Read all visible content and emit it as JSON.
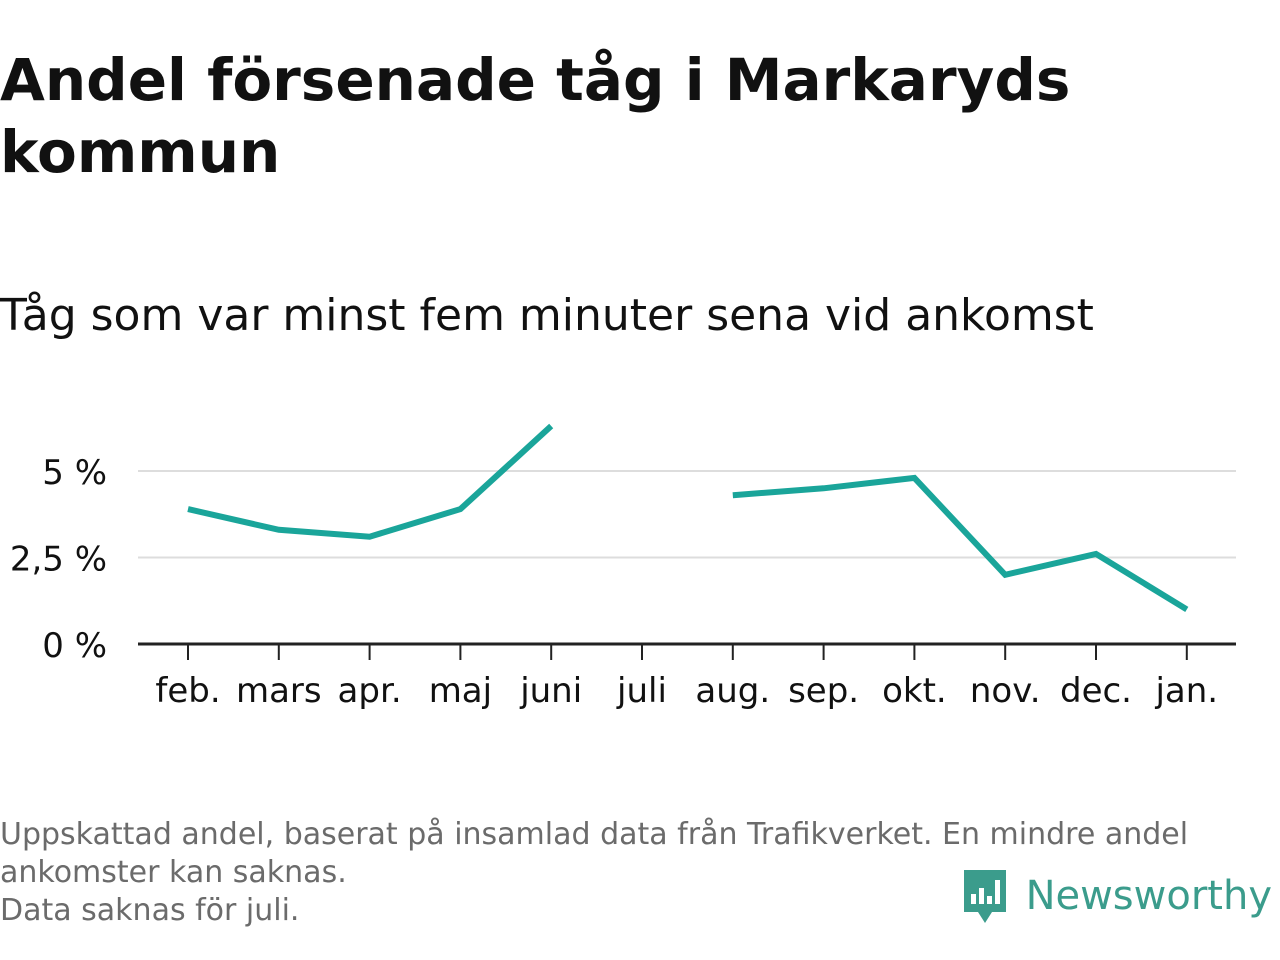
{
  "title": "Andel försenade tåg i Markaryds kommun",
  "subtitle": "Tåg som var minst fem minuter sena vid ankomst",
  "footer": {
    "note_line1": "Uppskattad andel, baserat på insamlad data från Trafikverket. En mindre andel ankomster kan saknas.",
    "note_line2": "Data saknas för juli."
  },
  "brand": {
    "name": "Newsworthy",
    "icon": "newsworthy-logo-icon",
    "color": "#3b9c8c"
  },
  "chart_data": {
    "type": "line",
    "categories": [
      "feb.",
      "mars",
      "apr.",
      "maj",
      "juni",
      "juli",
      "aug.",
      "sep.",
      "okt.",
      "nov.",
      "dec.",
      "jan."
    ],
    "series": [
      {
        "values": [
          3.9,
          3.3,
          3.1,
          3.9,
          6.3,
          null,
          4.3,
          4.5,
          4.8,
          2.0,
          2.6,
          1.0
        ]
      }
    ],
    "ytick_labels": [
      "0 %",
      "2,5 %",
      "5 %"
    ],
    "yticks": [
      0,
      2.5,
      5
    ],
    "ylim": [
      0,
      6.3
    ],
    "grid": true,
    "legend": "none",
    "line_color": "#1aa59a",
    "grid_color": "#dddddd",
    "axis_color": "#222222"
  }
}
